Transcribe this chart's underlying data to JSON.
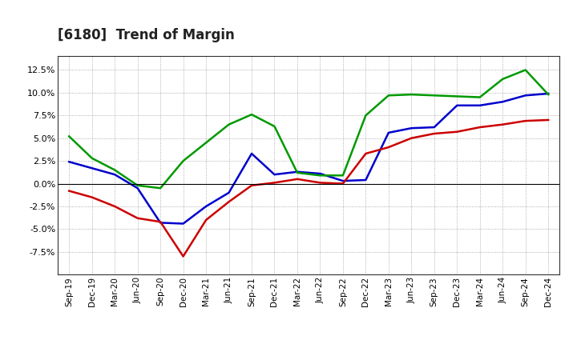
{
  "title": "[6180]  Trend of Margin",
  "x_labels": [
    "Sep-19",
    "Dec-19",
    "Mar-20",
    "Jun-20",
    "Sep-20",
    "Dec-20",
    "Mar-21",
    "Jun-21",
    "Sep-21",
    "Dec-21",
    "Mar-22",
    "Jun-22",
    "Sep-22",
    "Dec-22",
    "Mar-23",
    "Jun-23",
    "Sep-23",
    "Dec-23",
    "Mar-24",
    "Jun-24",
    "Sep-24",
    "Dec-24"
  ],
  "ordinary_income": [
    2.4,
    1.7,
    1.0,
    -0.5,
    -4.3,
    -4.4,
    -2.5,
    -1.0,
    3.3,
    1.0,
    1.3,
    1.1,
    0.3,
    0.4,
    5.6,
    6.1,
    6.2,
    8.6,
    8.6,
    9.0,
    9.7,
    9.9
  ],
  "net_income": [
    -0.8,
    -1.5,
    -2.5,
    -3.8,
    -4.2,
    -8.0,
    -4.0,
    -2.0,
    -0.2,
    0.1,
    0.5,
    0.1,
    0.0,
    3.3,
    4.0,
    5.0,
    5.5,
    5.7,
    6.2,
    6.5,
    6.9,
    7.0
  ],
  "operating_cashflow": [
    5.2,
    2.8,
    1.5,
    -0.2,
    -0.5,
    2.5,
    4.5,
    6.5,
    7.6,
    6.3,
    1.2,
    0.9,
    0.9,
    7.5,
    9.7,
    9.8,
    9.7,
    9.6,
    9.5,
    11.5,
    12.5,
    9.8
  ],
  "ylim": [
    -10.0,
    14.0
  ],
  "yticks": [
    -7.5,
    -5.0,
    -2.5,
    0.0,
    2.5,
    5.0,
    7.5,
    10.0,
    12.5
  ],
  "line_colors": {
    "ordinary_income": "#0000cc",
    "net_income": "#cc0000",
    "operating_cashflow": "#009900"
  },
  "line_width": 1.8,
  "background_color": "#ffffff",
  "grid_color": "#999999",
  "title_fontsize": 12
}
